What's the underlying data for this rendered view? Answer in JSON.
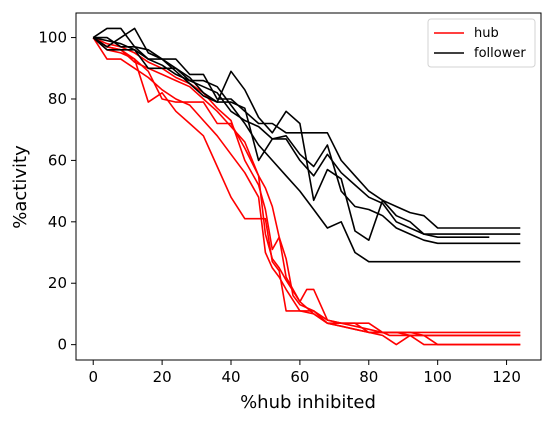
{
  "chart_data": {
    "type": "line",
    "title": "",
    "xlabel": "%hub inhibited",
    "ylabel": "%activity",
    "xlim": [
      -5,
      130
    ],
    "ylim": [
      -5,
      108
    ],
    "xticks": [
      0,
      20,
      40,
      60,
      80,
      100,
      120
    ],
    "yticks": [
      0,
      20,
      40,
      60,
      80,
      100
    ],
    "grid": false,
    "legend": {
      "position": "top-right",
      "entries": [
        {
          "label": "hub",
          "color": "#ff0000"
        },
        {
          "label": "follower",
          "color": "#000000"
        }
      ]
    },
    "series": [
      {
        "group": "hub",
        "color": "#ff0000",
        "x": [
          0,
          4,
          8,
          12,
          16,
          20,
          24,
          28,
          32,
          36,
          40,
          44,
          48,
          50,
          52,
          54,
          56,
          60,
          64,
          68,
          72,
          76,
          80,
          84,
          88,
          92,
          96,
          100,
          124
        ],
        "y": [
          100,
          97,
          96,
          92,
          90,
          88,
          86,
          84,
          80,
          76,
          71,
          66,
          55,
          36,
          28,
          25,
          21,
          14,
          10,
          7,
          6,
          5,
          4,
          4,
          4,
          4,
          3,
          3,
          3
        ]
      },
      {
        "group": "hub",
        "color": "#ff0000",
        "x": [
          0,
          4,
          8,
          12,
          16,
          20,
          24,
          28,
          32,
          36,
          40,
          44,
          48,
          50,
          52,
          54,
          56,
          60,
          64,
          68,
          72,
          76,
          80,
          84,
          88,
          92,
          96,
          100,
          124
        ],
        "y": [
          100,
          93,
          93,
          90,
          87,
          83,
          80,
          78,
          73,
          68,
          62,
          56,
          48,
          30,
          25,
          22,
          18,
          11,
          10,
          7,
          6,
          5,
          4,
          4,
          4,
          3,
          3,
          3,
          3
        ]
      },
      {
        "group": "hub",
        "color": "#ff0000",
        "x": [
          0,
          4,
          8,
          12,
          16,
          20,
          24,
          28,
          32,
          36,
          40,
          44,
          48,
          50,
          52,
          54,
          56,
          58,
          60,
          64,
          68,
          72,
          76,
          80,
          84,
          88,
          92,
          96,
          100,
          124
        ],
        "y": [
          100,
          98,
          97,
          95,
          92,
          90,
          87,
          85,
          82,
          77,
          73,
          60,
          52,
          44,
          31,
          35,
          28,
          16,
          13,
          11,
          8,
          7,
          6,
          5,
          4,
          4,
          4,
          4,
          4,
          4
        ]
      },
      {
        "group": "hub",
        "color": "#ff0000",
        "x": [
          0,
          4,
          8,
          12,
          16,
          20,
          24,
          28,
          32,
          36,
          40,
          44,
          48,
          50,
          52,
          54,
          56,
          60,
          62,
          64,
          68,
          72,
          76,
          80,
          84,
          86,
          88,
          92,
          96,
          100,
          124
        ],
        "y": [
          100,
          96,
          95,
          93,
          89,
          80,
          79,
          79,
          79,
          72,
          72,
          64,
          55,
          51,
          45,
          35,
          22,
          14,
          18,
          18,
          8,
          7,
          7,
          7,
          4,
          3,
          3,
          3,
          3,
          0,
          0
        ]
      },
      {
        "group": "hub",
        "color": "#ff0000",
        "x": [
          0,
          4,
          8,
          12,
          16,
          20,
          24,
          28,
          32,
          36,
          40,
          44,
          48,
          50,
          52,
          54,
          56,
          60,
          64,
          68,
          72,
          76,
          80,
          84,
          88,
          92,
          96,
          100,
          124
        ],
        "y": [
          100,
          97,
          96,
          93,
          79,
          82,
          76,
          72,
          68,
          58,
          48,
          41,
          41,
          41,
          27,
          24,
          11,
          11,
          11,
          7,
          7,
          7,
          4,
          3,
          0,
          3,
          0,
          0,
          0
        ]
      },
      {
        "group": "follower",
        "color": "#000000",
        "x": [
          0,
          4,
          8,
          12,
          16,
          20,
          24,
          28,
          32,
          36,
          40,
          44,
          48,
          52,
          56,
          60,
          62,
          64,
          68,
          72,
          76,
          80,
          84,
          88,
          92,
          96,
          100,
          124
        ],
        "y": [
          100,
          103,
          103,
          97,
          93,
          93,
          93,
          88,
          88,
          80,
          80,
          76,
          72,
          72,
          69,
          69,
          69,
          69,
          69,
          60,
          55,
          50,
          47,
          45,
          43,
          42,
          38,
          38
        ]
      },
      {
        "group": "follower",
        "color": "#000000",
        "x": [
          0,
          4,
          8,
          12,
          16,
          20,
          24,
          28,
          32,
          36,
          40,
          44,
          48,
          52,
          56,
          60,
          64,
          68,
          72,
          76,
          80,
          84,
          88,
          92,
          96,
          100,
          124
        ],
        "y": [
          100,
          100,
          97,
          97,
          96,
          93,
          89,
          85,
          81,
          79,
          79,
          77,
          60,
          67,
          67,
          60,
          55,
          62,
          56,
          52,
          48,
          46,
          40,
          38,
          36,
          36,
          36
        ]
      },
      {
        "group": "follower",
        "color": "#000000",
        "x": [
          0,
          4,
          8,
          12,
          16,
          20,
          24,
          28,
          32,
          36,
          40,
          44,
          48,
          52,
          56,
          60,
          64,
          68,
          72,
          76,
          80,
          84,
          88,
          92,
          96,
          100,
          124
        ],
        "y": [
          100,
          96,
          96,
          96,
          90,
          90,
          90,
          86,
          86,
          84,
          78,
          72,
          65,
          60,
          55,
          50,
          44,
          38,
          40,
          30,
          27,
          27,
          27,
          27,
          27,
          27,
          27
        ]
      },
      {
        "group": "follower",
        "color": "#000000",
        "x": [
          0,
          4,
          8,
          12,
          16,
          20,
          24,
          28,
          32,
          36,
          40,
          44,
          48,
          52,
          56,
          60,
          64,
          68,
          72,
          76,
          80,
          84,
          88,
          92,
          96,
          100,
          115
        ],
        "y": [
          100,
          97,
          100,
          103,
          95,
          93,
          90,
          87,
          82,
          79,
          89,
          83,
          74,
          69,
          76,
          72,
          47,
          57,
          54,
          37,
          34,
          47,
          42,
          40,
          36,
          35,
          35
        ]
      },
      {
        "group": "follower",
        "color": "#000000",
        "x": [
          0,
          4,
          8,
          12,
          16,
          20,
          24,
          28,
          32,
          36,
          40,
          44,
          48,
          52,
          56,
          60,
          64,
          68,
          72,
          76,
          80,
          84,
          88,
          92,
          96,
          100,
          124
        ],
        "y": [
          100,
          99,
          98,
          96,
          93,
          91,
          88,
          86,
          84,
          82,
          76,
          73,
          71,
          67,
          68,
          62,
          58,
          65,
          50,
          45,
          44,
          42,
          38,
          36,
          34,
          33,
          33
        ]
      }
    ]
  }
}
